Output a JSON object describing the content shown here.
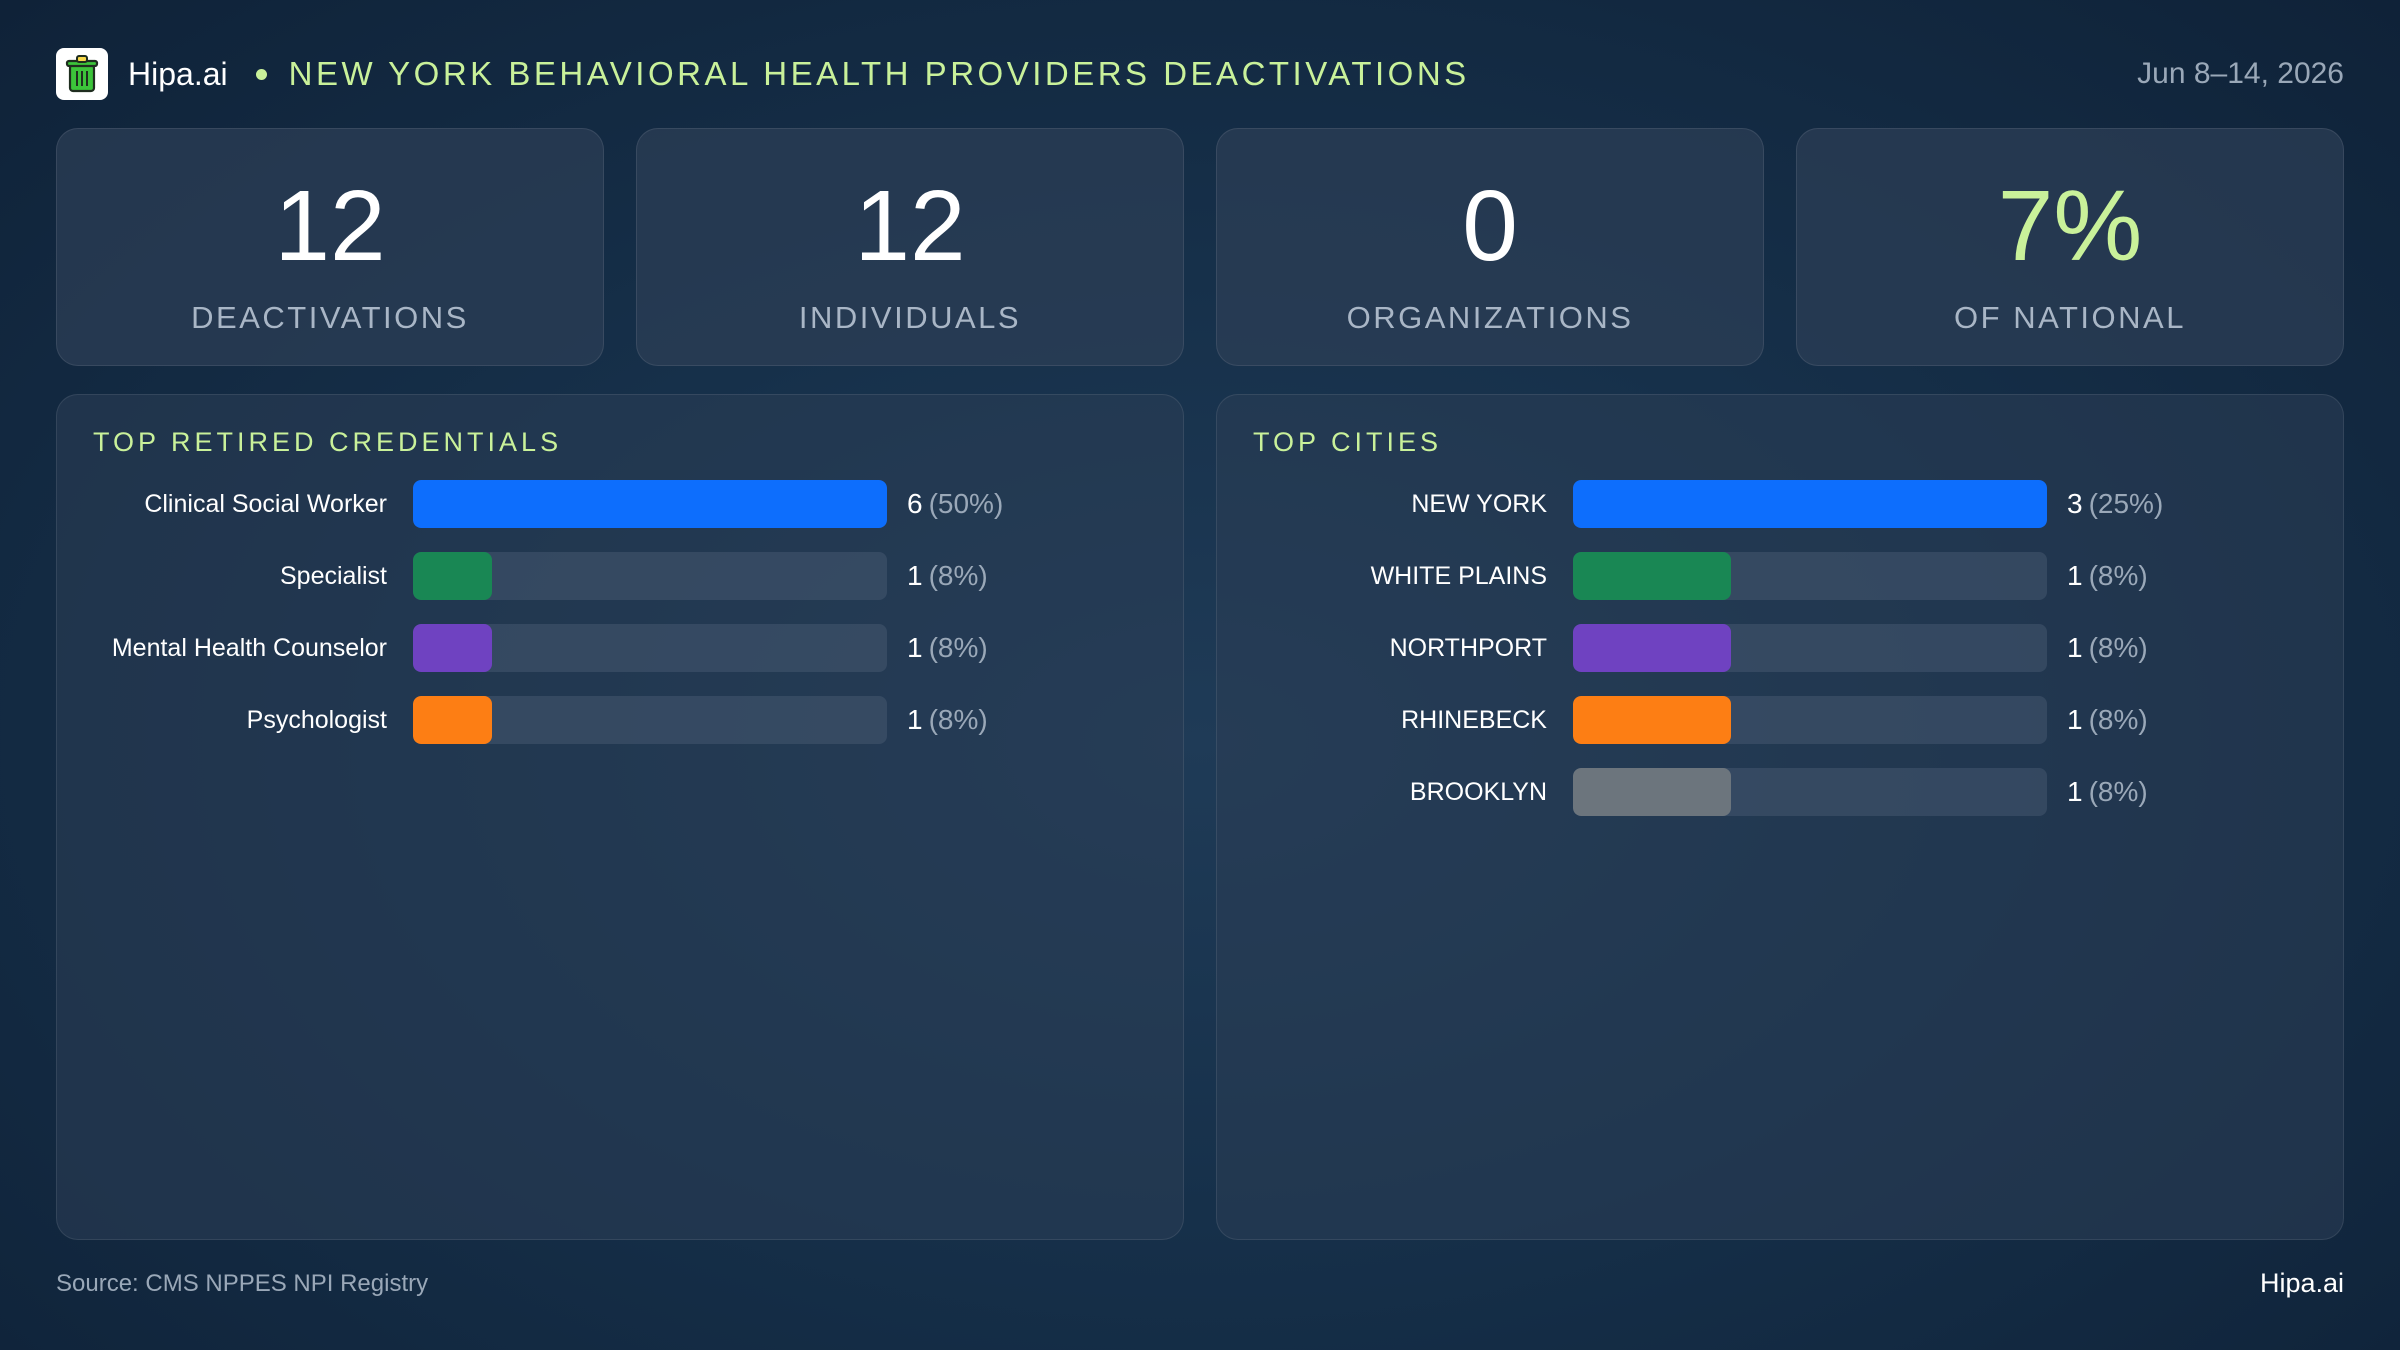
{
  "header": {
    "brand": "Hipa.ai",
    "headline": "NEW YORK BEHAVIORAL HEALTH PROVIDERS DEACTIVATIONS",
    "date_range": "Jun 8–14, 2026",
    "logo_icon": "trash-can-icon"
  },
  "stats": [
    {
      "value": "12",
      "label": "DEACTIVATIONS"
    },
    {
      "value": "12",
      "label": "INDIVIDUALS"
    },
    {
      "value": "0",
      "label": "ORGANIZATIONS"
    },
    {
      "value": "7%",
      "label": "OF NATIONAL",
      "accent": "#c9f19a"
    }
  ],
  "chart_data": [
    {
      "type": "bar",
      "orientation": "horizontal",
      "title": "TOP RETIRED CREDENTIALS",
      "categories": [
        "Clinical Social Worker",
        "Specialist",
        "Mental Health Counselor",
        "Psychologist"
      ],
      "values": [
        6,
        1,
        1,
        1
      ],
      "percents": [
        "(50%)",
        "(8%)",
        "(8%)",
        "(8%)"
      ],
      "max": 6,
      "colors": [
        "#0d6efd",
        "#198754",
        "#6f42c1",
        "#fd7e14"
      ]
    },
    {
      "type": "bar",
      "orientation": "horizontal",
      "title": "TOP CITIES",
      "categories": [
        "NEW YORK",
        "WHITE PLAINS",
        "NORTHPORT",
        "RHINEBECK",
        "BROOKLYN"
      ],
      "values": [
        3,
        1,
        1,
        1,
        1
      ],
      "percents": [
        "(25%)",
        "(8%)",
        "(8%)",
        "(8%)",
        "(8%)"
      ],
      "max": 3,
      "colors": [
        "#0d6efd",
        "#198754",
        "#6f42c1",
        "#fd7e14",
        "#6c757d"
      ]
    }
  ],
  "footer": {
    "source": "Source: CMS NPPES NPI Registry",
    "brand": "Hipa.ai"
  }
}
